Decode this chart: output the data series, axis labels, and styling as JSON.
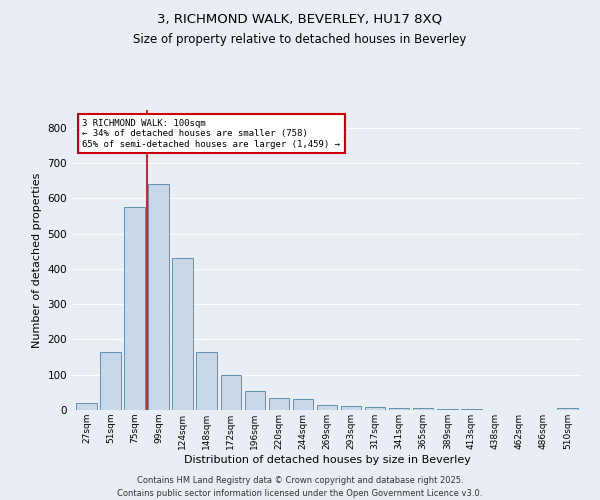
{
  "title_line1": "3, RICHMOND WALK, BEVERLEY, HU17 8XQ",
  "title_line2": "Size of property relative to detached houses in Beverley",
  "xlabel": "Distribution of detached houses by size in Beverley",
  "ylabel": "Number of detached properties",
  "categories": [
    "27sqm",
    "51sqm",
    "75sqm",
    "99sqm",
    "124sqm",
    "148sqm",
    "172sqm",
    "196sqm",
    "220sqm",
    "244sqm",
    "269sqm",
    "293sqm",
    "317sqm",
    "341sqm",
    "365sqm",
    "389sqm",
    "413sqm",
    "438sqm",
    "462sqm",
    "486sqm",
    "510sqm"
  ],
  "values": [
    20,
    165,
    575,
    640,
    430,
    165,
    100,
    55,
    35,
    30,
    15,
    10,
    8,
    6,
    5,
    3,
    2,
    1,
    1,
    1,
    5
  ],
  "bar_color": "#c8d8e8",
  "bar_edge_color": "#6090b0",
  "annotation_text": "3 RICHMOND WALK: 100sqm\n← 34% of detached houses are smaller (758)\n65% of semi-detached houses are larger (1,459) →",
  "annotation_box_color": "#ffffff",
  "annotation_border_color": "#cc0000",
  "ref_line_color": "#cc0000",
  "ylim": [
    0,
    850
  ],
  "yticks": [
    0,
    100,
    200,
    300,
    400,
    500,
    600,
    700,
    800
  ],
  "background_color": "#e8eef4",
  "grid_color": "#ffffff",
  "footer": "Contains HM Land Registry data © Crown copyright and database right 2025.\nContains public sector information licensed under the Open Government Licence v3.0."
}
